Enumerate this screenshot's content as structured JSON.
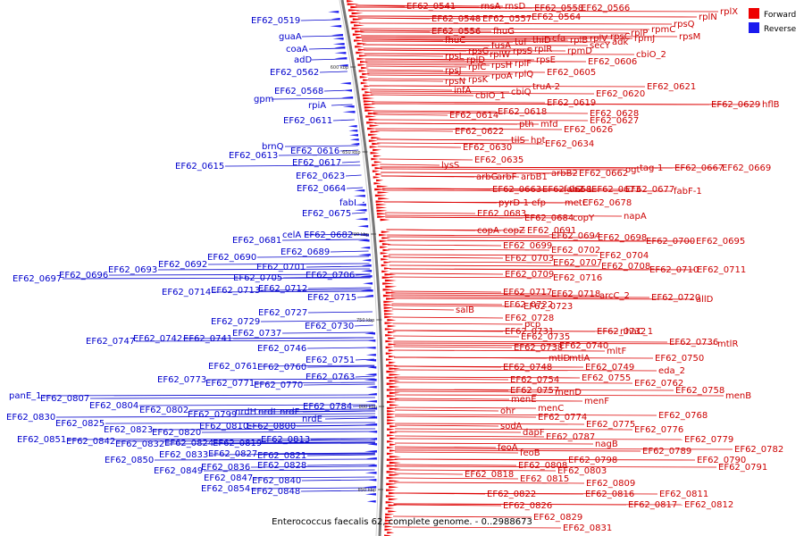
{
  "legend": [
    {
      "label": "Forward",
      "color": "#ee0000"
    },
    {
      "label": "Reverse",
      "color": "#1a1aee"
    }
  ],
  "caption": "Enterococcus faecalis 62, complete genome. - 0..2988673",
  "scale_ticks": [
    "600 kbp",
    "650 kbp",
    "700 kbp",
    "750 kbp",
    "800 kbp",
    "850 kbp"
  ],
  "forward_labels": [
    "EF62_0541",
    "rnsA",
    "rnsD",
    "EF62_0558",
    "EF62_0566",
    "EF62_0548",
    "EF62_0557",
    "EF62_0564",
    "EF62_0556",
    "fhuG",
    "fhuC",
    "rpsG",
    "fusA",
    "tuf",
    "thiD",
    "cfa",
    "rplB",
    "rplV",
    "rpsC",
    "rplP",
    "rpmC",
    "rpsQ",
    "rplN",
    "rplX",
    "rpsL",
    "rplD",
    "rplW",
    "rpsS",
    "rplR",
    "rpmD",
    "secY",
    "adk",
    "rpmJ",
    "rpsM",
    "rpsJ",
    "rplC",
    "rpsH",
    "rplF",
    "rpsE",
    "EF62_0606",
    "cbiO_2",
    "rpsN",
    "rpsK",
    "rpoA",
    "rplQ",
    "EF62_0605",
    "infA",
    "cbiO_1",
    "cbiQ",
    "truA-2",
    "EF62_0620",
    "EF62_0621",
    "EF62_0619",
    "EF62_0614",
    "EF62_0618",
    "EF62_0628",
    "EF62_0629",
    "hflB",
    "EF62_0627",
    "EF62_0622",
    "pth",
    "mfd",
    "EF62_0626",
    "tilS",
    "hpt",
    "EF62_0634",
    "EF62_0630",
    "EF62_0635",
    "lysS",
    "arbG",
    "arbF",
    "arbB1",
    "arbB2",
    "EF62_0662",
    "ogt",
    "tag-1",
    "EF62_0667",
    "EF62_0669",
    "EF62_0663",
    "EF62_0668",
    "fabZ-1",
    "EF62_0673",
    "EF62_0677",
    "fabF-1",
    "pyrD-1",
    "efp",
    "metC",
    "EF62_0678",
    "EF62_0683",
    "EF62_0684",
    "copY",
    "napA",
    "copA",
    "copZ",
    "EF62_0691",
    "EF62_0694",
    "EF62_0698",
    "EF62_0700",
    "EF62_0695",
    "EF62_0699",
    "EF62_0702",
    "EF62_0703",
    "EF62_0704",
    "EF62_0707",
    "EF62_0708",
    "EF62_0709",
    "EF62_0710",
    "EF62_0711",
    "EF62_0716",
    "EF62_0717",
    "EF62_0718",
    "arcC_2",
    "EF62_0720",
    "allD",
    "EF62_0722",
    "EF62_0723",
    "salB",
    "EF62_0728",
    "pcp",
    "EF62_0731",
    "EF62_0732",
    "nhaC_1",
    "EF62_0735",
    "EF62_0736",
    "mtlR",
    "EF62_0738",
    "EF62_0740",
    "mltF",
    "mtlD",
    "mtlA",
    "EF62_0750",
    "EF62_0748",
    "EF62_0749",
    "eda_2",
    "EF62_0754",
    "EF62_0755",
    "EF62_0762",
    "EF62_0757",
    "EF62_0758",
    "menB",
    "menD",
    "menE",
    "menF",
    "ohr",
    "menC",
    "EF62_0768",
    "EF62_0774",
    "EF62_0775",
    "EF62_0776",
    "sodA",
    "dapF",
    "EF62_0779",
    "EF62_0787",
    "nagB",
    "EF62_0782",
    "feoA",
    "EF62_0789",
    "EF62_0790",
    "feoB",
    "EF62_0798",
    "EF62_0791",
    "EF62_0808",
    "EF62_0803",
    "EF62_0818",
    "EF62_0815",
    "EF62_0809",
    "EF62_0816",
    "EF62_0811",
    "EF62_0822",
    "EF62_0817",
    "EF62_0812",
    "EF62_0826",
    "EF62_0829",
    "EF62_0831"
  ],
  "reverse_labels": [
    "EF62_0519",
    "guaA",
    "coaA",
    "adD",
    "EF62_0562",
    "gpm",
    "EF62_0568",
    "rpiA",
    "EF62_0611",
    "brnQ",
    "EF62_0613",
    "EF62_0616",
    "EF62_0615",
    "EF62_0617",
    "EF62_0623",
    "EF62_0664",
    "fabI",
    "EF62_0675",
    "celA",
    "EF62_0682",
    "EF62_0681",
    "EF62_0689",
    "EF62_0690",
    "EF62_0692",
    "EF62_0693",
    "EF62_0696",
    "EF62_0697",
    "EF62_0701",
    "EF62_0705",
    "EF62_0706",
    "EF62_0714",
    "EF62_0713",
    "EF62_0712",
    "EF62_0715",
    "EF62_0727",
    "EF62_0729",
    "EF62_0730",
    "EF62_0737",
    "EF62_0747",
    "EF62_0742",
    "EF62_0741",
    "EF62_0746",
    "EF62_0751",
    "EF62_0761",
    "EF62_0760",
    "EF62_0763",
    "EF62_0773",
    "EF62_0771",
    "EF62_0770",
    "EF62_0784",
    "panE_1",
    "EF62_0807",
    "EF62_0804",
    "EF62_0802",
    "EF62_0799",
    "nrdH",
    "nrdI",
    "nrdF",
    "nrdE",
    "EF62_0830",
    "EF62_0825",
    "EF62_0823",
    "EF62_0820",
    "EF62_0810",
    "EF62_0800",
    "EF62_0851",
    "EF62_0842",
    "EF62_0832",
    "EF62_0824",
    "EF62_0819",
    "EF62_0813",
    "EF62_0833",
    "EF62_0827",
    "EF62_0821",
    "EF62_0850",
    "EF62_0849",
    "EF62_0836",
    "EF62_0828",
    "EF62_0847",
    "EF62_0840",
    "EF62_0854",
    "EF62_0848"
  ]
}
